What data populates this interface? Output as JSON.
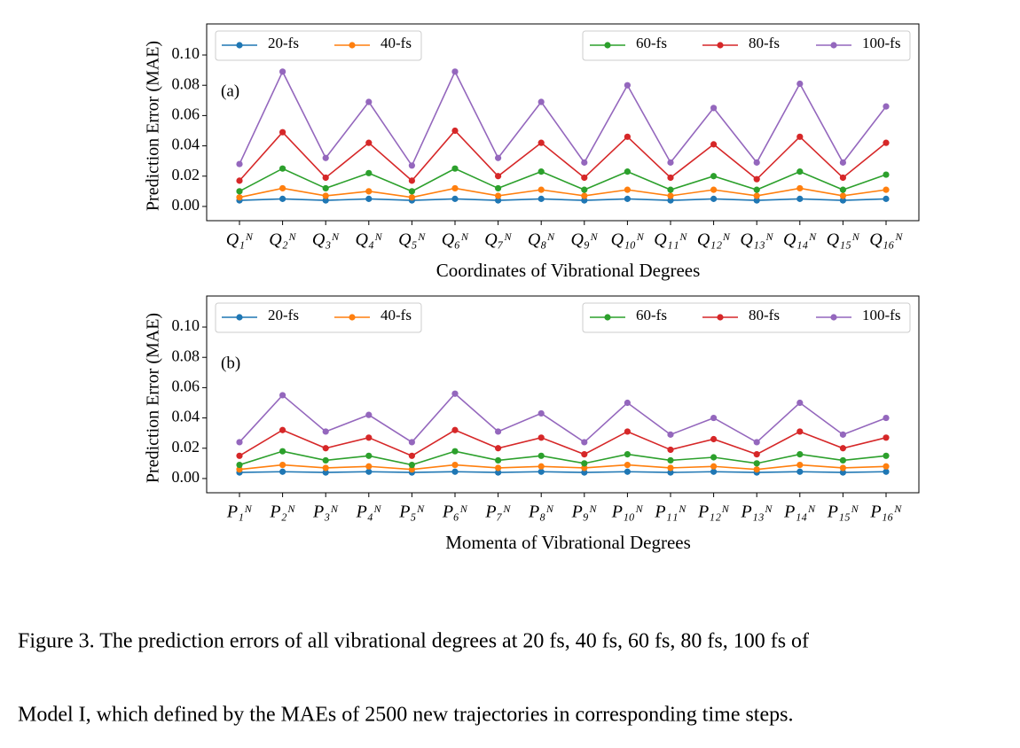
{
  "chart_data": [
    {
      "type": "line",
      "annotation": "(a)",
      "xlabel": "Coordinates of Vibrational Degrees",
      "ylabel": "Prediction Error (MAE)",
      "categories": [
        "Q₁ᴺ",
        "Q₂ᴺ",
        "Q₃ᴺ",
        "Q₄ᴺ",
        "Q₅ᴺ",
        "Q₆ᴺ",
        "Q₇ᴺ",
        "Q₈ᴺ",
        "Q₉ᴺ",
        "Q₁₀ᴺ",
        "Q₁₁ᴺ",
        "Q₁₂ᴺ",
        "Q₁₃ᴺ",
        "Q₁₄ᴺ",
        "Q₁₅ᴺ",
        "Q₁₆ᴺ"
      ],
      "ylim": [
        -0.0094,
        0.1205
      ],
      "yticks": [
        {
          "value": 0,
          "label": "0.00"
        },
        {
          "value": 0.02,
          "label": "0.02"
        },
        {
          "value": 0.04,
          "label": "0.04"
        },
        {
          "value": 0.06,
          "label": "0.06"
        },
        {
          "value": 0.08,
          "label": "0.08"
        },
        {
          "value": 0.1,
          "label": "0.10"
        }
      ],
      "series": [
        {
          "name": "20-fs",
          "color": "#1f77b4",
          "values": [
            0.004,
            0.005,
            0.004,
            0.005,
            0.004,
            0.005,
            0.004,
            0.005,
            0.004,
            0.005,
            0.004,
            0.005,
            0.004,
            0.005,
            0.004,
            0.005
          ]
        },
        {
          "name": "40-fs",
          "color": "#ff7f0e",
          "values": [
            0.006,
            0.012,
            0.007,
            0.01,
            0.006,
            0.012,
            0.007,
            0.011,
            0.007,
            0.011,
            0.007,
            0.011,
            0.007,
            0.012,
            0.007,
            0.011
          ]
        },
        {
          "name": "60-fs",
          "color": "#2ca02c",
          "values": [
            0.01,
            0.025,
            0.012,
            0.022,
            0.01,
            0.025,
            0.012,
            0.023,
            0.011,
            0.023,
            0.011,
            0.02,
            0.011,
            0.023,
            0.011,
            0.021
          ]
        },
        {
          "name": "80-fs",
          "color": "#d62728",
          "values": [
            0.017,
            0.049,
            0.019,
            0.042,
            0.017,
            0.05,
            0.02,
            0.042,
            0.019,
            0.046,
            0.019,
            0.041,
            0.018,
            0.046,
            0.019,
            0.042
          ]
        },
        {
          "name": "100-fs",
          "color": "#9467bd",
          "values": [
            0.028,
            0.089,
            0.032,
            0.069,
            0.027,
            0.089,
            0.032,
            0.069,
            0.029,
            0.08,
            0.029,
            0.065,
            0.029,
            0.081,
            0.029,
            0.066
          ]
        }
      ]
    },
    {
      "type": "line",
      "annotation": "(b)",
      "xlabel": "Momenta of Vibrational Degrees",
      "ylabel": "Prediction Error (MAE)",
      "categories": [
        "P₁ᴺ",
        "P₂ᴺ",
        "P₃ᴺ",
        "P₄ᴺ",
        "P₅ᴺ",
        "P₆ᴺ",
        "P₇ᴺ",
        "P₈ᴺ",
        "P₉ᴺ",
        "P₁₀ᴺ",
        "P₁₁ᴺ",
        "P₁₂ᴺ",
        "P₁₃ᴺ",
        "P₁₄ᴺ",
        "P₁₅ᴺ",
        "P₁₆ᴺ"
      ],
      "ylim": [
        -0.0094,
        0.1205
      ],
      "yticks": [
        {
          "value": 0,
          "label": "0.00"
        },
        {
          "value": 0.02,
          "label": "0.02"
        },
        {
          "value": 0.04,
          "label": "0.04"
        },
        {
          "value": 0.06,
          "label": "0.06"
        },
        {
          "value": 0.08,
          "label": "0.08"
        },
        {
          "value": 0.1,
          "label": "0.10"
        }
      ],
      "series": [
        {
          "name": "20-fs",
          "color": "#1f77b4",
          "values": [
            0.004,
            0.0045,
            0.004,
            0.0045,
            0.004,
            0.0045,
            0.004,
            0.0045,
            0.004,
            0.0045,
            0.004,
            0.0045,
            0.004,
            0.0045,
            0.004,
            0.0045
          ]
        },
        {
          "name": "40-fs",
          "color": "#ff7f0e",
          "values": [
            0.006,
            0.009,
            0.007,
            0.008,
            0.006,
            0.009,
            0.007,
            0.008,
            0.007,
            0.009,
            0.007,
            0.008,
            0.006,
            0.009,
            0.007,
            0.008
          ]
        },
        {
          "name": "60-fs",
          "color": "#2ca02c",
          "values": [
            0.009,
            0.018,
            0.012,
            0.015,
            0.009,
            0.018,
            0.012,
            0.015,
            0.01,
            0.016,
            0.012,
            0.014,
            0.01,
            0.016,
            0.012,
            0.015
          ]
        },
        {
          "name": "80-fs",
          "color": "#d62728",
          "values": [
            0.015,
            0.032,
            0.02,
            0.027,
            0.015,
            0.032,
            0.02,
            0.027,
            0.016,
            0.031,
            0.019,
            0.026,
            0.016,
            0.031,
            0.02,
            0.027
          ]
        },
        {
          "name": "100-fs",
          "color": "#9467bd",
          "values": [
            0.024,
            0.055,
            0.031,
            0.042,
            0.024,
            0.056,
            0.031,
            0.043,
            0.024,
            0.05,
            0.029,
            0.04,
            0.024,
            0.05,
            0.029,
            0.04
          ]
        }
      ]
    }
  ],
  "caption": [
    "Figure 3. The prediction errors of all vibrational degrees at 20 fs, 40 fs, 60 fs, 80 fs, 100 fs of",
    "Model I, which defined by the MAEs of 2500 new trajectories in corresponding time steps."
  ]
}
